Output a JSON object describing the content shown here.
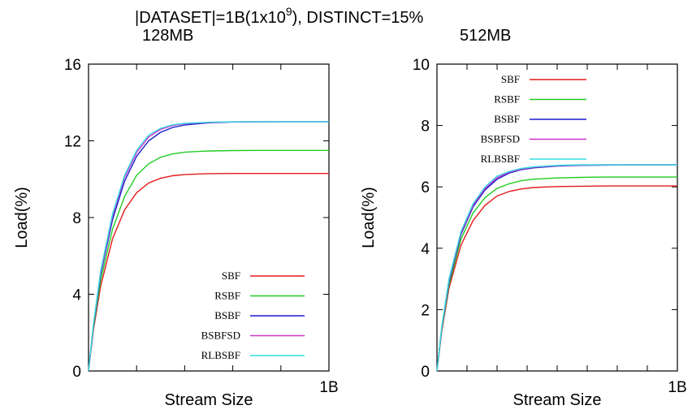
{
  "header": {
    "title_main": "|DATASET|=1B(1x10",
    "title_sup": "9",
    "title_rest": "), DISTINCT=15%"
  },
  "colors": {
    "SBF": "#e31a1c",
    "RSBF": "#22cc22",
    "BSBF": "#1a1acc",
    "BSBFSD": "#cc33cc",
    "RLBSBF": "#33dddd"
  },
  "chart_data": [
    {
      "type": "line",
      "subtitle": "128MB",
      "xlabel": "Stream Size",
      "ylabel": "Load(%)",
      "ylim": [
        0,
        16
      ],
      "yticks": [
        0,
        4,
        8,
        12,
        16
      ],
      "xlim": [
        0,
        1
      ],
      "x_end_label": "1B",
      "x": [
        0,
        0.02,
        0.05,
        0.1,
        0.15,
        0.2,
        0.25,
        0.3,
        0.35,
        0.4,
        0.5,
        0.6,
        0.7,
        0.8,
        0.9,
        1.0
      ],
      "legend_position": "bottom-right",
      "series": [
        {
          "name": "SBF",
          "values": [
            0,
            2.1,
            4.4,
            6.9,
            8.4,
            9.3,
            9.8,
            10.05,
            10.18,
            10.24,
            10.29,
            10.3,
            10.3,
            10.3,
            10.3,
            10.3
          ]
        },
        {
          "name": "RSBF",
          "values": [
            0,
            2.2,
            4.7,
            7.4,
            9.1,
            10.2,
            10.8,
            11.15,
            11.32,
            11.41,
            11.47,
            11.49,
            11.5,
            11.5,
            11.5,
            11.5
          ]
        },
        {
          "name": "BSBF",
          "values": [
            0,
            2.3,
            5.0,
            7.9,
            9.9,
            11.2,
            12.0,
            12.45,
            12.7,
            12.83,
            12.94,
            12.98,
            12.99,
            13.0,
            13.0,
            13.0
          ]
        },
        {
          "name": "BSBFSD",
          "values": [
            0,
            2.35,
            5.1,
            8.1,
            10.1,
            11.4,
            12.2,
            12.6,
            12.8,
            12.9,
            12.96,
            12.99,
            13.0,
            13.0,
            13.0,
            13.0
          ]
        },
        {
          "name": "RLBSBF",
          "values": [
            0,
            2.4,
            5.2,
            8.2,
            10.2,
            11.5,
            12.3,
            12.65,
            12.84,
            12.92,
            12.97,
            12.99,
            13.0,
            13.0,
            13.0,
            13.0
          ]
        }
      ]
    },
    {
      "type": "line",
      "subtitle": "512MB",
      "xlabel": "Stream Size",
      "ylabel": "Load(%)",
      "ylim": [
        0,
        10
      ],
      "yticks": [
        0,
        2,
        4,
        6,
        8,
        10
      ],
      "xlim": [
        0,
        1
      ],
      "x_end_label": "1B",
      "x": [
        0,
        0.02,
        0.05,
        0.1,
        0.15,
        0.2,
        0.25,
        0.3,
        0.35,
        0.4,
        0.5,
        0.6,
        0.7,
        0.8,
        0.9,
        1.0
      ],
      "legend_position": "top",
      "series": [
        {
          "name": "SBF",
          "values": [
            0,
            1.3,
            2.7,
            4.1,
            4.9,
            5.4,
            5.7,
            5.85,
            5.93,
            5.98,
            6.01,
            6.02,
            6.03,
            6.03,
            6.03,
            6.03
          ]
        },
        {
          "name": "RSBF",
          "values": [
            0,
            1.35,
            2.8,
            4.3,
            5.15,
            5.65,
            5.95,
            6.1,
            6.2,
            6.25,
            6.29,
            6.31,
            6.32,
            6.32,
            6.32,
            6.32
          ]
        },
        {
          "name": "BSBF",
          "values": [
            0,
            1.4,
            2.9,
            4.45,
            5.35,
            5.9,
            6.25,
            6.45,
            6.56,
            6.62,
            6.68,
            6.7,
            6.71,
            6.72,
            6.72,
            6.72
          ]
        },
        {
          "name": "BSBFSD",
          "values": [
            0,
            1.42,
            2.95,
            4.5,
            5.4,
            5.95,
            6.3,
            6.48,
            6.58,
            6.64,
            6.69,
            6.71,
            6.72,
            6.72,
            6.72,
            6.72
          ]
        },
        {
          "name": "RLBSBF",
          "values": [
            0,
            1.45,
            3.0,
            4.55,
            5.45,
            6.0,
            6.35,
            6.5,
            6.6,
            6.65,
            6.7,
            6.72,
            6.72,
            6.72,
            6.72,
            6.72
          ]
        }
      ]
    }
  ]
}
